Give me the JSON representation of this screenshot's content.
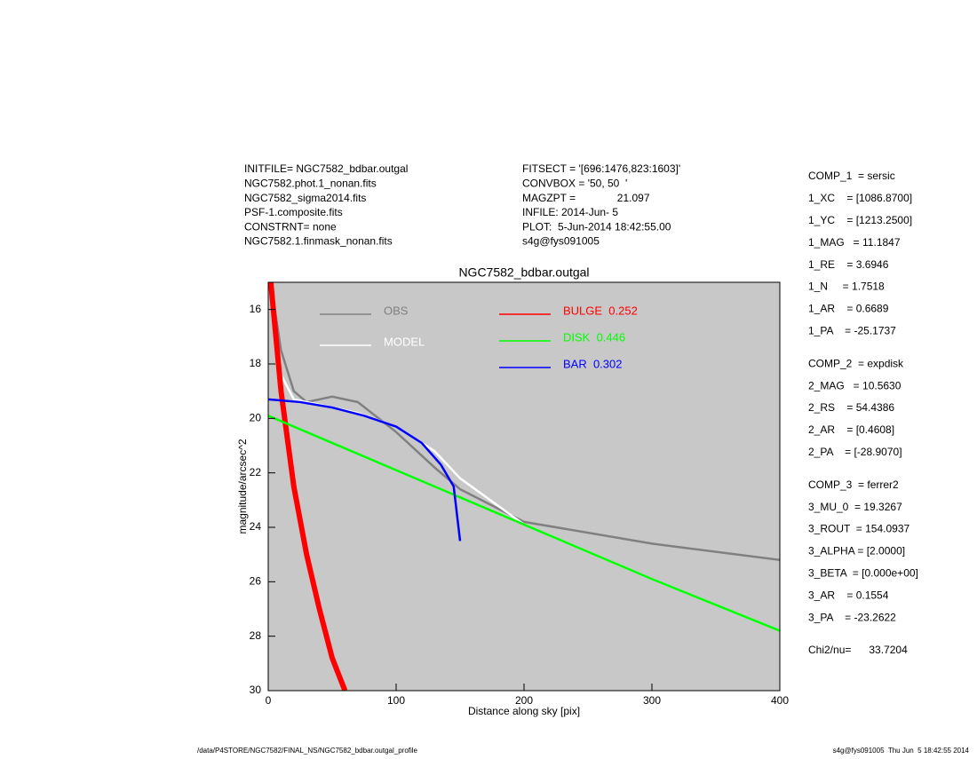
{
  "header_left": [
    "INITFILE= NGC7582_bdbar.outgal",
    "NGC7582.phot.1_nonan.fits",
    "NGC7582_sigma2014.fits",
    "PSF-1.composite.fits",
    "CONSTRNT= none",
    "NGC7582.1.finmask_nonan.fits"
  ],
  "header_middle": [
    "FITSECT = '[696:1476,823:1603]'",
    "CONVBOX = '50, 50  '",
    "MAGZPT =              21.097",
    "INFILE: 2014-Jun- 5",
    "PLOT:  5-Jun-2014 18:42:55.00",
    "s4g@fys091005"
  ],
  "parameters": [
    [
      "COMP_1  = sersic",
      "1_XC    = [1086.8700]",
      "1_YC    = [1213.2500]",
      "1_MAG   = 11.1847",
      "1_RE    = 3.6946",
      "1_N     = 1.7518",
      "1_AR    = 0.6689",
      "1_PA    = -25.1737"
    ],
    [
      "COMP_2  = expdisk",
      "2_MAG   = 10.5630",
      "2_RS    = 54.4386",
      "2_AR    = [0.4608]",
      "2_PA    = [-28.9070]"
    ],
    [
      "COMP_3  = ferrer2",
      "3_MU_0  = 19.3267",
      "3_ROUT  = 154.0937",
      "3_ALPHA = [2.0000]",
      "3_BETA  = [0.000e+00]",
      "3_AR    = 0.1554",
      "3_PA    = -23.2622"
    ],
    [
      "Chi2/nu=      33.7204"
    ]
  ],
  "footer_left": "/data/P4STORE/NGC7582/FINAL_NS/NGC7582_bdbar.outgal_profile",
  "footer_right": "s4g@fys091005  Thu Jun  5 18:42:55 2014",
  "chart_data": {
    "type": "line",
    "title": "NGC7582_bdbar.outgal",
    "x_label": "Distance along sky [pix]",
    "y_label": "magnitude/arcsec^2",
    "xlim": [
      0,
      400
    ],
    "xticks": [
      0,
      100,
      200,
      300,
      400
    ],
    "ylim": [
      30,
      15
    ],
    "yticks": [
      16,
      18,
      20,
      22,
      24,
      26,
      28,
      30
    ],
    "background": "#c8c8c8",
    "series": [
      {
        "name": "OBS",
        "color": "#808080",
        "x": [
          2,
          10,
          20,
          30,
          50,
          70,
          100,
          130,
          150,
          200,
          300,
          400
        ],
        "values": [
          15,
          17.5,
          19,
          19.4,
          19.2,
          19.4,
          20.5,
          21.8,
          22.6,
          23.8,
          24.6,
          25.2
        ]
      },
      {
        "name": "MODEL",
        "color": "#ffffff",
        "x": [
          2,
          10,
          20,
          40,
          70,
          100,
          130,
          150,
          200,
          300,
          400
        ],
        "values": [
          15,
          18.4,
          19.3,
          19.5,
          19.8,
          20.3,
          21.2,
          22.2,
          23.9,
          25.9,
          27.8
        ]
      },
      {
        "name": "BULGE  0.252",
        "color": "#ff0000",
        "x": [
          2,
          10,
          20,
          30,
          40,
          50,
          60
        ],
        "values": [
          15,
          19,
          22.5,
          25,
          27,
          28.8,
          30
        ]
      },
      {
        "name": "DISK  0.446",
        "color": "#00ff00",
        "x": [
          0,
          100,
          200,
          300,
          400
        ],
        "values": [
          19.9,
          21.9,
          23.9,
          25.9,
          27.8
        ]
      },
      {
        "name": "BAR  0.302",
        "color": "#0000ff",
        "x": [
          0,
          25,
          50,
          75,
          100,
          120,
          135,
          145,
          150
        ],
        "values": [
          19.3,
          19.4,
          19.6,
          19.9,
          20.3,
          20.9,
          21.7,
          22.5,
          24.5
        ]
      }
    ]
  }
}
